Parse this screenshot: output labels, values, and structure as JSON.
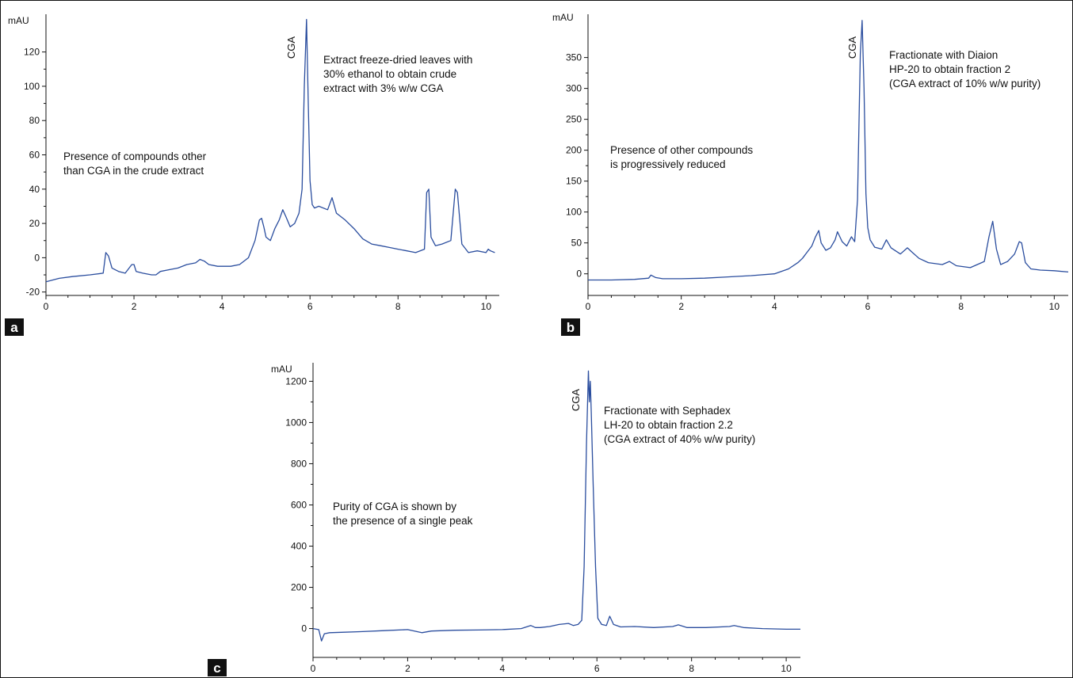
{
  "colors": {
    "trace": "#2a4d9e",
    "axis": "#111111",
    "badge": "#111111"
  },
  "chart_data": [
    {
      "type": "line",
      "panel": "a",
      "ylabel": "mAU",
      "peak_label": "CGA",
      "xlim": [
        0,
        10.3
      ],
      "ylim": [
        -22,
        142
      ],
      "xticks": [
        0,
        2,
        4,
        6,
        8,
        10
      ],
      "yticks": [
        -20,
        0,
        20,
        40,
        60,
        80,
        100,
        120
      ],
      "annotations": [
        [
          "Extract freeze-dried leaves with",
          "30% ethanol to obtain crude",
          "extract with 3% w/w CGA"
        ],
        [
          "Presence of compounds other",
          "than CGA in the crude extract"
        ]
      ],
      "x": [
        0,
        0.3,
        0.6,
        1.0,
        1.3,
        1.36,
        1.42,
        1.5,
        1.65,
        1.8,
        1.95,
        2.0,
        2.05,
        2.2,
        2.4,
        2.5,
        2.6,
        2.8,
        3.0,
        3.2,
        3.4,
        3.5,
        3.6,
        3.7,
        3.9,
        4.2,
        4.4,
        4.6,
        4.75,
        4.85,
        4.9,
        4.95,
        5.0,
        5.1,
        5.2,
        5.3,
        5.38,
        5.45,
        5.55,
        5.65,
        5.75,
        5.82,
        5.87,
        5.92,
        5.96,
        6.0,
        6.05,
        6.1,
        6.2,
        6.4,
        6.5,
        6.6,
        6.8,
        7.0,
        7.2,
        7.4,
        7.6,
        7.8,
        8.0,
        8.2,
        8.4,
        8.6,
        8.65,
        8.7,
        8.75,
        8.85,
        9.0,
        9.2,
        9.3,
        9.35,
        9.45,
        9.6,
        9.8,
        10.0,
        10.05,
        10.1,
        10.2
      ],
      "y": [
        -14,
        -12,
        -11,
        -10,
        -9,
        3,
        1,
        -6,
        -8,
        -9,
        -4,
        -4,
        -8,
        -9,
        -10,
        -10,
        -8,
        -7,
        -6,
        -4,
        -3,
        -1,
        -2,
        -4,
        -5,
        -5,
        -4,
        0,
        10,
        22,
        23,
        18,
        12,
        10,
        17,
        22,
        28,
        24,
        18,
        20,
        26,
        40,
        100,
        139,
        90,
        45,
        31,
        29,
        30,
        28,
        35,
        26,
        22,
        17,
        11,
        8,
        7,
        6,
        5,
        4,
        3,
        5,
        38,
        40,
        12,
        7,
        8,
        10,
        40,
        38,
        8,
        3,
        4,
        3,
        5,
        4,
        3
      ]
    },
    {
      "type": "line",
      "panel": "b",
      "ylabel": "mAU",
      "peak_label": "CGA",
      "xlim": [
        0,
        10.3
      ],
      "ylim": [
        -35,
        420
      ],
      "xticks": [
        0,
        2,
        4,
        6,
        8,
        10
      ],
      "yticks": [
        0,
        50,
        100,
        150,
        200,
        250,
        300,
        350
      ],
      "annotations": [
        [
          "Fractionate with Diaion",
          "HP-20 to obtain fraction 2",
          "(CGA extract of 10% w/w purity)"
        ],
        [
          "Presence of other compounds",
          "is progressively reduced"
        ]
      ],
      "x": [
        0,
        0.5,
        1.0,
        1.3,
        1.35,
        1.45,
        1.6,
        2.0,
        2.5,
        3.0,
        3.5,
        4.0,
        4.3,
        4.5,
        4.6,
        4.7,
        4.8,
        4.88,
        4.95,
        5.0,
        5.1,
        5.2,
        5.3,
        5.35,
        5.45,
        5.55,
        5.65,
        5.72,
        5.78,
        5.84,
        5.88,
        5.92,
        5.96,
        6.0,
        6.05,
        6.15,
        6.3,
        6.4,
        6.5,
        6.7,
        6.85,
        6.95,
        7.1,
        7.3,
        7.6,
        7.75,
        7.9,
        8.2,
        8.5,
        8.6,
        8.68,
        8.76,
        8.85,
        9.0,
        9.15,
        9.25,
        9.3,
        9.38,
        9.5,
        9.7,
        10.0,
        10.3
      ],
      "y": [
        -10,
        -10,
        -9,
        -7,
        -2,
        -6,
        -8,
        -8,
        -7,
        -5,
        -3,
        0,
        8,
        18,
        25,
        35,
        45,
        60,
        70,
        50,
        38,
        42,
        55,
        68,
        52,
        45,
        60,
        52,
        120,
        355,
        410,
        300,
        130,
        75,
        55,
        43,
        40,
        55,
        42,
        32,
        42,
        35,
        25,
        18,
        15,
        20,
        13,
        10,
        20,
        60,
        85,
        40,
        15,
        20,
        32,
        52,
        50,
        18,
        8,
        6,
        5,
        3
      ]
    },
    {
      "type": "line",
      "panel": "c",
      "ylabel": "mAU",
      "peak_label": "CGA",
      "xlim": [
        0,
        10.3
      ],
      "ylim": [
        -140,
        1290
      ],
      "xticks": [
        0,
        2,
        4,
        6,
        8,
        10
      ],
      "yticks": [
        0,
        200,
        400,
        600,
        800,
        1000,
        1200
      ],
      "annotations": [
        [
          "Fractionate with Sephadex",
          "LH-20 to obtain fraction 2.2",
          "(CGA extract of 40% w/w purity)"
        ],
        [
          "Purity of CGA is shown by",
          "the presence of a single peak"
        ]
      ],
      "x": [
        0,
        0.12,
        0.18,
        0.24,
        0.35,
        0.6,
        1.0,
        1.5,
        2.0,
        2.3,
        2.5,
        3.0,
        3.5,
        4.0,
        4.4,
        4.6,
        4.7,
        4.8,
        5.0,
        5.2,
        5.4,
        5.5,
        5.6,
        5.68,
        5.73,
        5.78,
        5.82,
        5.84,
        5.86,
        5.88,
        5.92,
        5.97,
        6.02,
        6.1,
        6.2,
        6.27,
        6.35,
        6.5,
        6.8,
        7.2,
        7.6,
        7.72,
        7.9,
        8.3,
        8.8,
        8.9,
        9.1,
        9.5,
        10.0,
        10.3
      ],
      "y": [
        0,
        -5,
        -60,
        -25,
        -20,
        -18,
        -15,
        -10,
        -5,
        -20,
        -12,
        -8,
        -7,
        -5,
        0,
        15,
        5,
        5,
        10,
        20,
        25,
        15,
        20,
        40,
        300,
        900,
        1250,
        1100,
        1200,
        1050,
        700,
        300,
        50,
        20,
        15,
        60,
        20,
        8,
        10,
        5,
        10,
        18,
        5,
        5,
        10,
        15,
        5,
        0,
        -3,
        -3
      ]
    }
  ],
  "panel_labels": [
    "a",
    "b",
    "c"
  ]
}
